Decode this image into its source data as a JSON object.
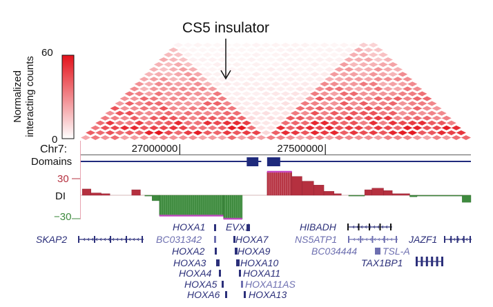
{
  "annotation": "CS5 insulator",
  "colorbar": {
    "label_line1": "Normalized",
    "label_line2": "interacting counts",
    "max_label": "60",
    "min_label": "0",
    "max": 60,
    "min": 0,
    "color_high": "#e3121b",
    "color_low": "#ffffff"
  },
  "tracks": {
    "chrom_label": "Chr7:",
    "tick_labels": [
      "27000000",
      "27500000"
    ],
    "domains_label": "Domains",
    "di_label": "DI",
    "di_max_label": "30",
    "di_min_label": "−30",
    "domain_line_color": "#1f2a7c",
    "pos_color": "#b5303f",
    "neg_color": "#3e8a3e"
  },
  "chart_data": {
    "type": "heatmap",
    "title": "",
    "xlabel": "Chr7:",
    "ylabel": "Normalized interacting counts",
    "xlim": [
      26660000,
      28000000
    ],
    "x_ticks": [
      27000000,
      27500000
    ],
    "color_range": [
      0,
      60
    ],
    "insulator_position": 27280000,
    "domains": [
      {
        "start": 26660000,
        "end": 27280000
      },
      {
        "start": 27320000,
        "end": 28000000
      }
    ],
    "domain_blocks": [
      {
        "start": 27230000,
        "end": 27270000
      },
      {
        "start": 27300000,
        "end": 27345000
      }
    ],
    "di": {
      "ylim": [
        -30,
        30
      ],
      "values": [
        {
          "start": 26665000,
          "end": 26695000,
          "value": 8
        },
        {
          "start": 26695000,
          "end": 26730000,
          "value": 3
        },
        {
          "start": 26730000,
          "end": 26760000,
          "value": 2
        },
        {
          "start": 26760000,
          "end": 26835000,
          "value": 0
        },
        {
          "start": 26835000,
          "end": 26865000,
          "value": 7
        },
        {
          "start": 26865000,
          "end": 26880000,
          "value": 0
        },
        {
          "start": 26880000,
          "end": 26905000,
          "value": -1
        },
        {
          "start": 26905000,
          "end": 26930000,
          "value": -7
        },
        {
          "start": 26930000,
          "end": 27150000,
          "value": -26
        },
        {
          "start": 27150000,
          "end": 27215000,
          "value": -30
        },
        {
          "start": 27215000,
          "end": 27300000,
          "value": 0
        },
        {
          "start": 27300000,
          "end": 27385000,
          "value": 30
        },
        {
          "start": 27385000,
          "end": 27420000,
          "value": 24
        },
        {
          "start": 27420000,
          "end": 27460000,
          "value": 18
        },
        {
          "start": 27460000,
          "end": 27495000,
          "value": 13
        },
        {
          "start": 27495000,
          "end": 27530000,
          "value": 5
        },
        {
          "start": 27530000,
          "end": 27555000,
          "value": 2
        },
        {
          "start": 27555000,
          "end": 27580000,
          "value": 0
        },
        {
          "start": 27580000,
          "end": 27635000,
          "value": -1
        },
        {
          "start": 27635000,
          "end": 27660000,
          "value": 7
        },
        {
          "start": 27660000,
          "end": 27700000,
          "value": 9
        },
        {
          "start": 27700000,
          "end": 27730000,
          "value": 6
        },
        {
          "start": 27730000,
          "end": 27790000,
          "value": 2
        },
        {
          "start": 27790000,
          "end": 27815000,
          "value": -2
        },
        {
          "start": 27815000,
          "end": 27970000,
          "value": -1
        },
        {
          "start": 27970000,
          "end": 28000000,
          "value": -9
        }
      ]
    },
    "genes": [
      {
        "name": "SKAP2",
        "start": 26665000,
        "end": 26760000
      },
      {
        "name": "HOXA1",
        "start": 27132000,
        "end": 27135000
      },
      {
        "name": "BC031342",
        "start": 27136000,
        "end": 27140000
      },
      {
        "name": "HOXA2",
        "start": 27140000,
        "end": 27142000
      },
      {
        "name": "HOXA3",
        "start": 27146000,
        "end": 27162000
      },
      {
        "name": "HOXA4",
        "start": 27168000,
        "end": 27170000
      },
      {
        "name": "HOXA5",
        "start": 27180000,
        "end": 27183000
      },
      {
        "name": "HOXA6",
        "start": 27186000,
        "end": 27188000
      },
      {
        "name": "EVX1",
        "start": 27282000,
        "end": 27286000
      },
      {
        "name": "HOXA7",
        "start": 27193000,
        "end": 27197000
      },
      {
        "name": "HOXA9",
        "start": 27202000,
        "end": 27206000
      },
      {
        "name": "HOXA10",
        "start": 27210000,
        "end": 27215000
      },
      {
        "name": "HOXA11",
        "start": 27221000,
        "end": 27225000
      },
      {
        "name": "HOXA11AS",
        "start": 27225000,
        "end": 27229000
      },
      {
        "name": "HOXA13",
        "start": 27236000,
        "end": 27240000
      },
      {
        "name": "HIBADH",
        "start": 27565000,
        "end": 27705000
      },
      {
        "name": "NS5ATP1",
        "start": 27575000,
        "end": 27660000
      },
      {
        "name": "BC034444",
        "start": 27580000,
        "end": 27600000
      },
      {
        "name": "TSL-A",
        "start": 27650000,
        "end": 27690000
      },
      {
        "name": "TAX1BP1",
        "start": 27740000,
        "end": 27830000
      },
      {
        "name": "JAZF1",
        "start": 27870000,
        "end": 28000000
      }
    ]
  }
}
